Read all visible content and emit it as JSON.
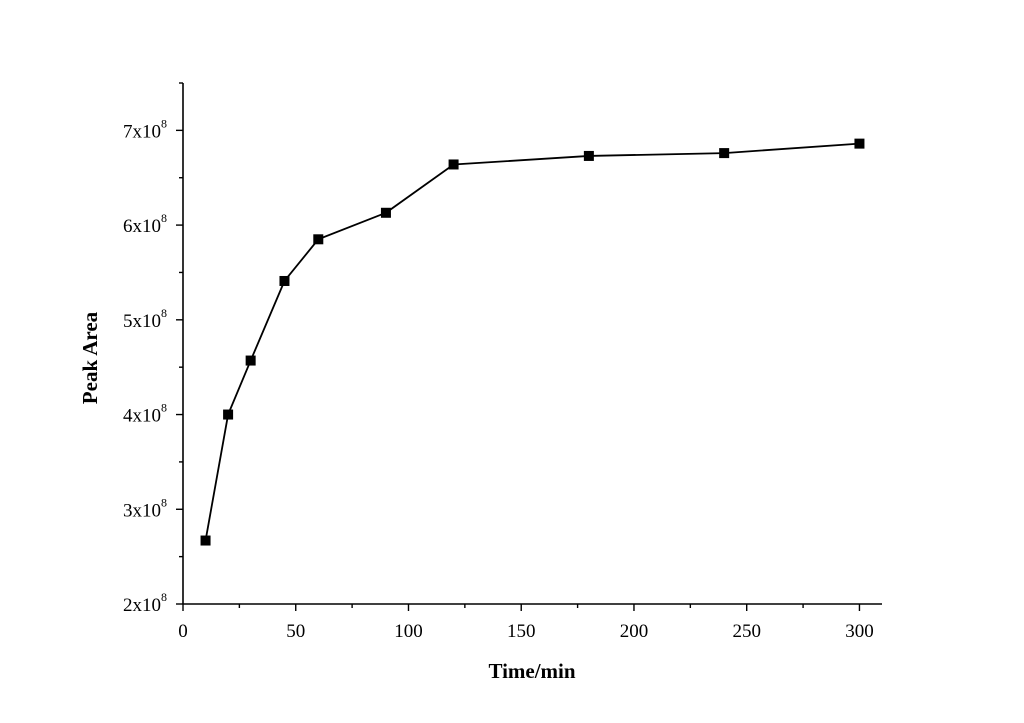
{
  "chart_data": {
    "type": "line",
    "title": "",
    "xlabel": "Time/min",
    "ylabel": "Peak Area",
    "xlim": [
      0,
      310
    ],
    "ylim": [
      200000000,
      750000000
    ],
    "x_ticks": [
      0,
      50,
      100,
      150,
      200,
      250,
      300
    ],
    "x_tick_labels": [
      "0",
      "50",
      "100",
      "150",
      "200",
      "250",
      "300"
    ],
    "y_ticks": [
      200000000,
      300000000,
      400000000,
      500000000,
      600000000,
      700000000
    ],
    "y_tick_labels": [
      {
        "mantissa": "2x10",
        "exponent": "8"
      },
      {
        "mantissa": "3x10",
        "exponent": "8"
      },
      {
        "mantissa": "4x10",
        "exponent": "8"
      },
      {
        "mantissa": "5x10",
        "exponent": "8"
      },
      {
        "mantissa": "6x10",
        "exponent": "8"
      },
      {
        "mantissa": "7x10",
        "exponent": "8"
      }
    ],
    "grid": false,
    "marker": "square",
    "series": [
      {
        "x": [
          10,
          20,
          30,
          45,
          60,
          90,
          120,
          180,
          240,
          300
        ],
        "y": [
          267000000,
          400000000,
          457000000,
          541000000,
          585000000,
          613000000,
          664000000,
          673000000,
          676000000,
          686000000
        ]
      }
    ]
  }
}
